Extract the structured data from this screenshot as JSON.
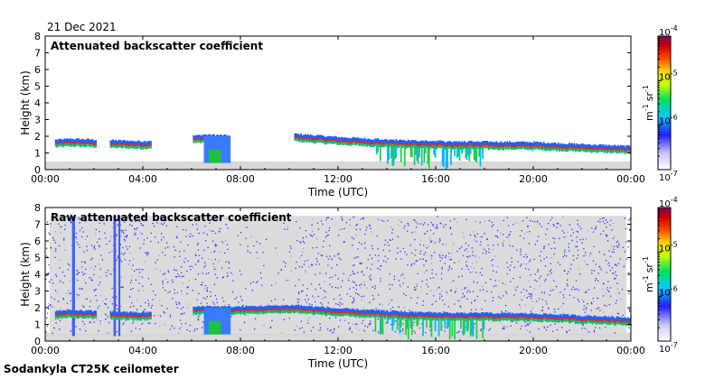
{
  "date_label": "21 Dec 2021",
  "instrument_label": "Sodankyla CT25K ceilometer",
  "chart_data": [
    {
      "type": "heatmap",
      "title": "Attenuated backscatter coefficient",
      "xlabel": "Time (UTC)",
      "ylabel": "Height (km)",
      "x_ticks": [
        "00:00",
        "04:00",
        "08:00",
        "12:00",
        "16:00",
        "20:00",
        "00:00"
      ],
      "y_ticks": [
        "0",
        "1",
        "2",
        "3",
        "4",
        "5",
        "6",
        "7",
        "8"
      ],
      "xlim_hours": [
        0,
        24
      ],
      "ylim_km": [
        0,
        8
      ],
      "colorbar": {
        "scale": "log",
        "range": [
          1e-07,
          0.0001
        ],
        "tick_base": "10",
        "tick_exponents": [
          "-7",
          "-6",
          "-5",
          "-4"
        ],
        "unit_base_1": "m",
        "unit_exp_1": "-1",
        "unit_base_2": "sr",
        "unit_exp_2": "-1"
      },
      "features": {
        "cloud_top_km": [
          [
            0.5,
            1.6
          ],
          [
            1.0,
            1.65
          ],
          [
            2.0,
            1.6
          ],
          [
            4.0,
            1.5
          ],
          [
            6.5,
            1.9
          ],
          [
            7.4,
            1.85
          ],
          [
            10.2,
            1.95
          ],
          [
            12.0,
            1.75
          ],
          [
            14.0,
            1.6
          ],
          [
            16.0,
            1.5
          ],
          [
            20.0,
            1.45
          ],
          [
            24.0,
            1.2
          ]
        ],
        "data_gaps_hours": [
          [
            7.5,
            10.2
          ]
        ]
      }
    },
    {
      "type": "heatmap",
      "title": "Raw attenuated backscatter coefficient",
      "xlabel": "Time (UTC)",
      "ylabel": "Height (km)",
      "x_ticks": [
        "00:00",
        "04:00",
        "08:00",
        "12:00",
        "16:00",
        "20:00",
        "00:00"
      ],
      "y_ticks": [
        "0",
        "1",
        "2",
        "3",
        "4",
        "5",
        "6",
        "7",
        "8"
      ],
      "xlim_hours": [
        0,
        24
      ],
      "ylim_km": [
        0,
        8
      ],
      "colorbar": {
        "scale": "log",
        "range": [
          1e-07,
          0.0001
        ],
        "tick_base": "10",
        "tick_exponents": [
          "-7",
          "-6",
          "-5",
          "-4"
        ],
        "unit_base_1": "m",
        "unit_exp_1": "-1",
        "unit_base_2": "sr",
        "unit_exp_2": "-1"
      },
      "features": {
        "cloud_top_km": [
          [
            0.5,
            1.6
          ],
          [
            1.0,
            1.65
          ],
          [
            2.0,
            1.6
          ],
          [
            4.0,
            1.5
          ],
          [
            6.5,
            1.9
          ],
          [
            7.4,
            1.85
          ],
          [
            10.2,
            1.95
          ],
          [
            12.0,
            1.75
          ],
          [
            14.0,
            1.6
          ],
          [
            16.0,
            1.5
          ],
          [
            20.0,
            1.45
          ],
          [
            24.0,
            1.2
          ]
        ],
        "noise_top_km": 7.5
      }
    }
  ]
}
